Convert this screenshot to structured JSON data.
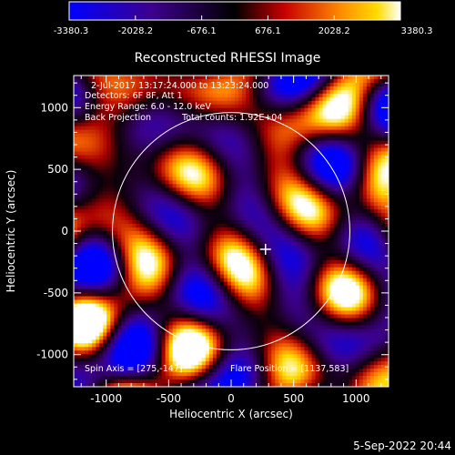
{
  "chart_data": {
    "type": "heatmap",
    "title": "Reconstructed RHESSI Image",
    "xlabel": "Heliocentric X (arcsec)",
    "ylabel": "Heliocentric Y (arcsec)",
    "xlim": [
      -1260,
      1260
    ],
    "ylim": [
      -1260,
      1260
    ],
    "xticks": [
      -1000,
      -500,
      0,
      500,
      1000
    ],
    "yticks": [
      -1000,
      -500,
      0,
      500,
      1000
    ],
    "colorbar": {
      "ticks": [
        "-3380.3",
        "-2028.2",
        "-676.1",
        "676.1",
        "2028.2",
        "3380.3"
      ],
      "range": [
        -3380.3,
        3380.3
      ]
    },
    "annotations": {
      "time_range": "2-Jul-2017 13:17:24.000 to 13:23:24.000",
      "detectors": "Detectors: 6F 8F, Att 1",
      "energy": "Energy Range: 6.0 - 12.0 keV",
      "method": "Back Projection",
      "counts": "Total counts: 1.92E+04",
      "spin_axis": "Spin Axis = [275,-147]",
      "flare_position": "Flare Position = [1137,583]"
    },
    "sun_radius_arcsec": 950,
    "center_marker": [
      275,
      -147
    ],
    "footer_date": "5-Sep-2022 20:44"
  }
}
